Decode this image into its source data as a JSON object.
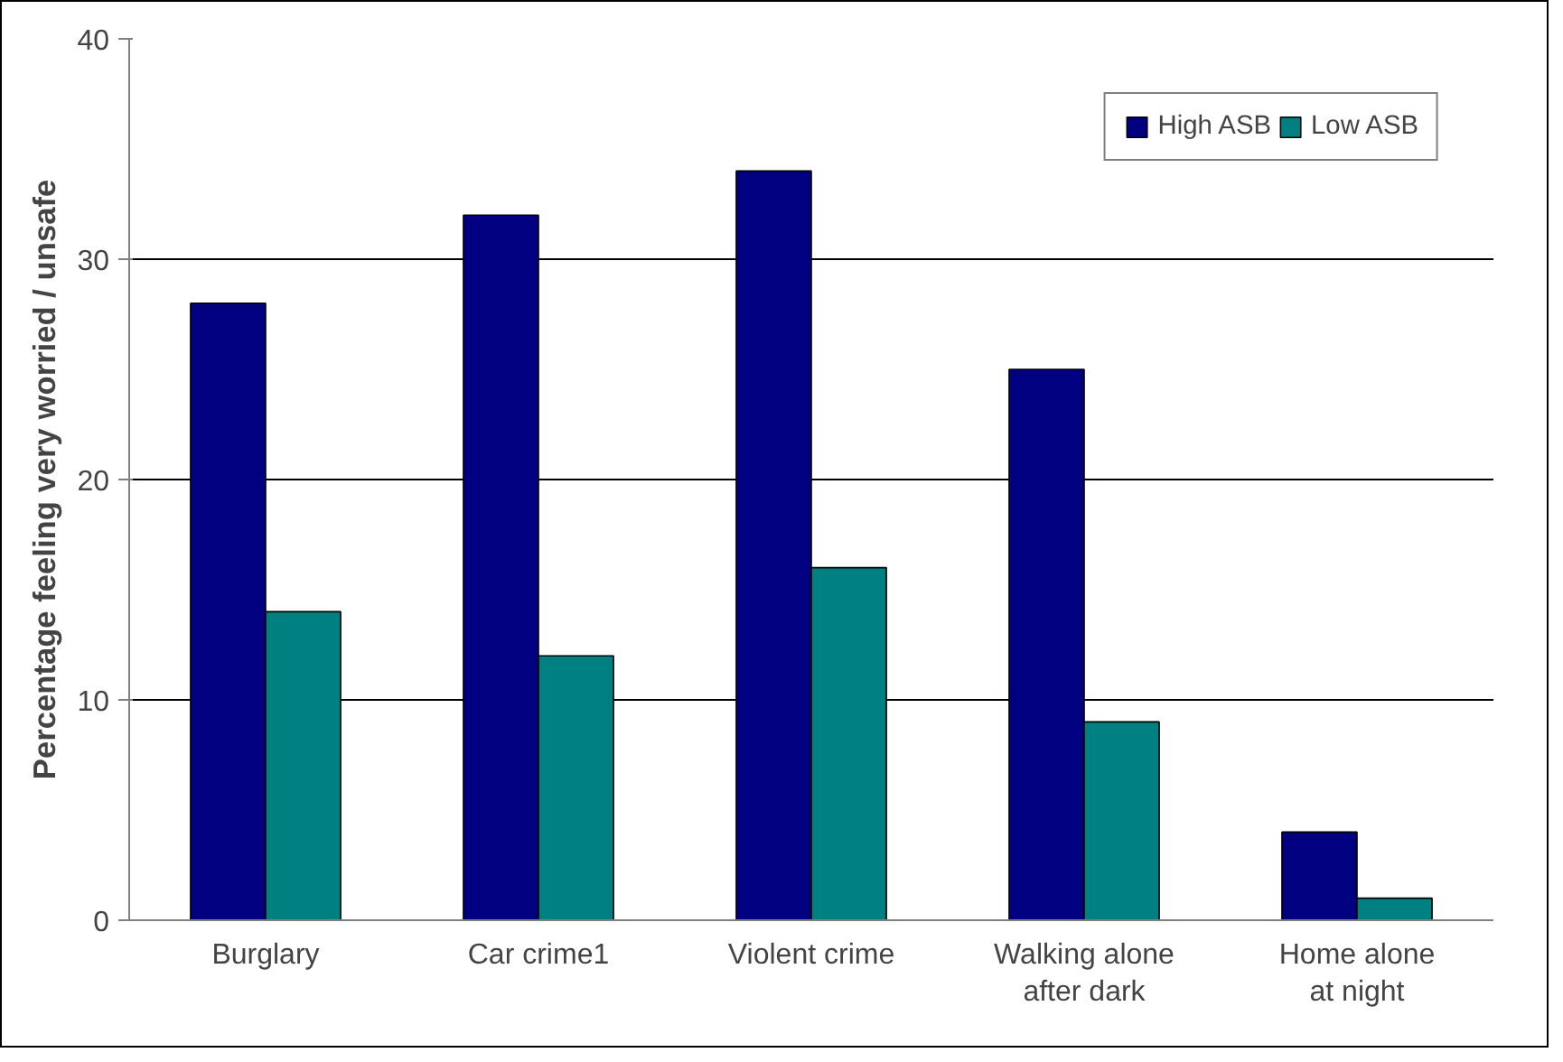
{
  "chart_data": {
    "type": "bar",
    "ylabel": "Percentage feeling very worried / unsafe",
    "categories": [
      "Burglary",
      "Car crime1",
      "Violent crime",
      "Walking alone\nafter dark",
      "Home alone\nat night"
    ],
    "series": [
      {
        "name": "High ASB",
        "color": "#000080",
        "values": [
          28,
          32,
          34,
          25,
          4
        ]
      },
      {
        "name": "Low ASB",
        "color": "#008080",
        "values": [
          14,
          12,
          16,
          9,
          1
        ]
      }
    ],
    "ylim": [
      0,
      40
    ],
    "yticks": [
      0,
      10,
      20,
      30,
      40
    ],
    "grid": "y",
    "legend": "top right"
  }
}
